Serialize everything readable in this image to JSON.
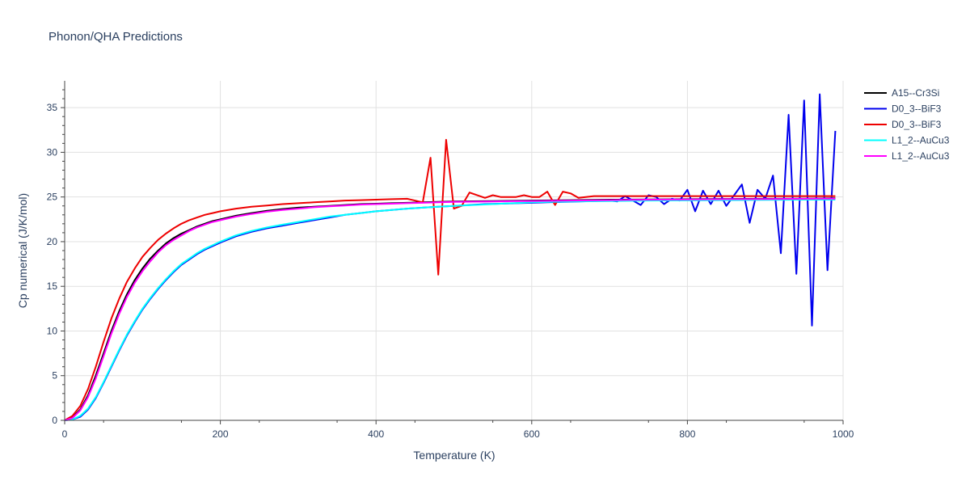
{
  "chart_data": {
    "type": "line",
    "title": "Phonon/QHA Predictions",
    "xlabel": "Temperature (K)",
    "ylabel": "Cp numerical (J/K/mol)",
    "xlim": [
      0,
      1000
    ],
    "ylim": [
      0,
      38
    ],
    "xticks": [
      0,
      200,
      400,
      600,
      800,
      1000
    ],
    "yticks": [
      0,
      5,
      10,
      15,
      20,
      25,
      30,
      35
    ],
    "grid": true,
    "legend_position": "top-right",
    "series": [
      {
        "name": "A15--Cr3Si",
        "color": "#000000",
        "x": [
          0,
          10,
          20,
          30,
          40,
          50,
          60,
          70,
          80,
          90,
          100,
          110,
          120,
          130,
          140,
          150,
          160,
          170,
          180,
          190,
          200,
          220,
          240,
          260,
          280,
          300,
          320,
          340,
          360,
          380,
          400,
          420,
          440,
          460,
          480,
          500,
          550,
          600,
          650,
          700,
          750,
          800,
          850,
          900,
          950,
          990
        ],
        "y": [
          0,
          0.3,
          1.2,
          2.8,
          5.0,
          7.5,
          10.0,
          12.2,
          14.1,
          15.7,
          17.0,
          18.1,
          19.0,
          19.8,
          20.4,
          20.9,
          21.3,
          21.7,
          22.0,
          22.3,
          22.5,
          22.9,
          23.2,
          23.45,
          23.65,
          23.8,
          23.9,
          24.0,
          24.1,
          24.2,
          24.25,
          24.3,
          24.35,
          24.4,
          24.45,
          24.5,
          24.55,
          24.6,
          24.65,
          24.7,
          24.72,
          24.75,
          24.78,
          24.8,
          24.82,
          24.85
        ]
      },
      {
        "name": "D0_3--BiF3",
        "color": "#0000ee",
        "x": [
          0,
          10,
          20,
          30,
          40,
          50,
          60,
          70,
          80,
          90,
          100,
          110,
          120,
          130,
          140,
          150,
          160,
          170,
          180,
          190,
          200,
          220,
          240,
          260,
          280,
          300,
          320,
          340,
          360,
          380,
          400,
          420,
          440,
          460,
          480,
          500,
          520,
          540,
          560,
          580,
          600,
          620,
          640,
          660,
          680,
          700,
          710,
          720,
          730,
          740,
          750,
          760,
          770,
          780,
          790,
          800,
          810,
          820,
          830,
          840,
          850,
          860,
          870,
          880,
          890,
          900,
          910,
          920,
          930,
          940,
          950,
          960,
          970,
          980,
          990
        ],
        "y": [
          0,
          0.1,
          0.4,
          1.2,
          2.5,
          4.2,
          6.0,
          7.8,
          9.5,
          11.0,
          12.4,
          13.6,
          14.7,
          15.7,
          16.6,
          17.4,
          18.0,
          18.6,
          19.1,
          19.5,
          19.9,
          20.6,
          21.1,
          21.5,
          21.8,
          22.1,
          22.4,
          22.7,
          23.0,
          23.2,
          23.4,
          23.55,
          23.7,
          23.8,
          23.9,
          24.0,
          24.1,
          24.2,
          24.25,
          24.3,
          24.35,
          24.4,
          24.45,
          24.5,
          24.55,
          24.6,
          24.5,
          25.1,
          24.6,
          24.1,
          25.2,
          25.0,
          24.2,
          24.8,
          24.6,
          25.8,
          23.4,
          25.7,
          24.2,
          25.7,
          24.0,
          25.2,
          26.4,
          22.1,
          25.8,
          24.8,
          27.4,
          18.7,
          34.2,
          16.4,
          35.8,
          10.6,
          36.5,
          16.8,
          32.4
        ]
      },
      {
        "name": "D0_3--BiF3",
        "color": "#ee0000",
        "x": [
          0,
          10,
          20,
          30,
          40,
          50,
          60,
          70,
          80,
          90,
          100,
          110,
          120,
          130,
          140,
          150,
          160,
          170,
          180,
          190,
          200,
          220,
          240,
          260,
          280,
          300,
          320,
          340,
          360,
          380,
          400,
          420,
          440,
          460,
          470,
          480,
          490,
          500,
          510,
          520,
          540,
          550,
          560,
          580,
          590,
          600,
          610,
          620,
          630,
          640,
          650,
          660,
          680,
          700,
          750,
          800,
          850,
          900,
          950,
          990
        ],
        "y": [
          0,
          0.5,
          1.6,
          3.5,
          6.0,
          8.8,
          11.4,
          13.6,
          15.5,
          17.0,
          18.3,
          19.3,
          20.2,
          20.9,
          21.5,
          22.0,
          22.4,
          22.7,
          23.0,
          23.2,
          23.4,
          23.7,
          23.9,
          24.05,
          24.2,
          24.3,
          24.4,
          24.5,
          24.6,
          24.65,
          24.7,
          24.75,
          24.8,
          24.4,
          29.4,
          16.3,
          31.4,
          23.7,
          24.0,
          25.5,
          24.9,
          25.2,
          25.0,
          25.0,
          25.2,
          25.0,
          25.0,
          25.6,
          24.1,
          25.6,
          25.4,
          24.9,
          25.1,
          25.1,
          25.1,
          25.1,
          25.1,
          25.1,
          25.1,
          25.1
        ]
      },
      {
        "name": "L1_2--AuCu3",
        "color": "#00ffff",
        "x": [
          0,
          10,
          20,
          30,
          40,
          50,
          60,
          70,
          80,
          90,
          100,
          110,
          120,
          130,
          140,
          150,
          160,
          170,
          180,
          190,
          200,
          220,
          240,
          260,
          280,
          300,
          320,
          340,
          360,
          380,
          400,
          420,
          440,
          460,
          480,
          500,
          550,
          600,
          650,
          700,
          750,
          800,
          850,
          900,
          950,
          990
        ],
        "y": [
          0,
          0.1,
          0.5,
          1.3,
          2.6,
          4.3,
          6.1,
          7.9,
          9.6,
          11.1,
          12.5,
          13.7,
          14.8,
          15.8,
          16.7,
          17.5,
          18.1,
          18.7,
          19.2,
          19.6,
          20.0,
          20.7,
          21.2,
          21.6,
          21.9,
          22.2,
          22.5,
          22.8,
          23.0,
          23.2,
          23.4,
          23.55,
          23.7,
          23.8,
          23.9,
          24.0,
          24.2,
          24.4,
          24.5,
          24.55,
          24.6,
          24.62,
          24.65,
          24.67,
          24.7,
          24.7
        ]
      },
      {
        "name": "L1_2--AuCu3",
        "color": "#ff00ff",
        "x": [
          0,
          10,
          20,
          30,
          40,
          50,
          60,
          70,
          80,
          90,
          100,
          110,
          120,
          130,
          140,
          150,
          160,
          170,
          180,
          190,
          200,
          220,
          240,
          260,
          280,
          300,
          320,
          340,
          360,
          380,
          400,
          420,
          440,
          460,
          480,
          500,
          550,
          600,
          650,
          700,
          750,
          800,
          850,
          900,
          950,
          990
        ],
        "y": [
          0,
          0.25,
          1.1,
          2.6,
          4.7,
          7.2,
          9.7,
          11.9,
          13.8,
          15.4,
          16.7,
          17.8,
          18.8,
          19.6,
          20.2,
          20.7,
          21.2,
          21.6,
          21.9,
          22.2,
          22.4,
          22.8,
          23.1,
          23.35,
          23.55,
          23.7,
          23.85,
          23.95,
          24.05,
          24.15,
          24.2,
          24.25,
          24.3,
          24.35,
          24.4,
          24.45,
          24.5,
          24.55,
          24.6,
          24.65,
          24.7,
          24.72,
          24.75,
          24.77,
          24.8,
          24.82
        ]
      }
    ]
  }
}
